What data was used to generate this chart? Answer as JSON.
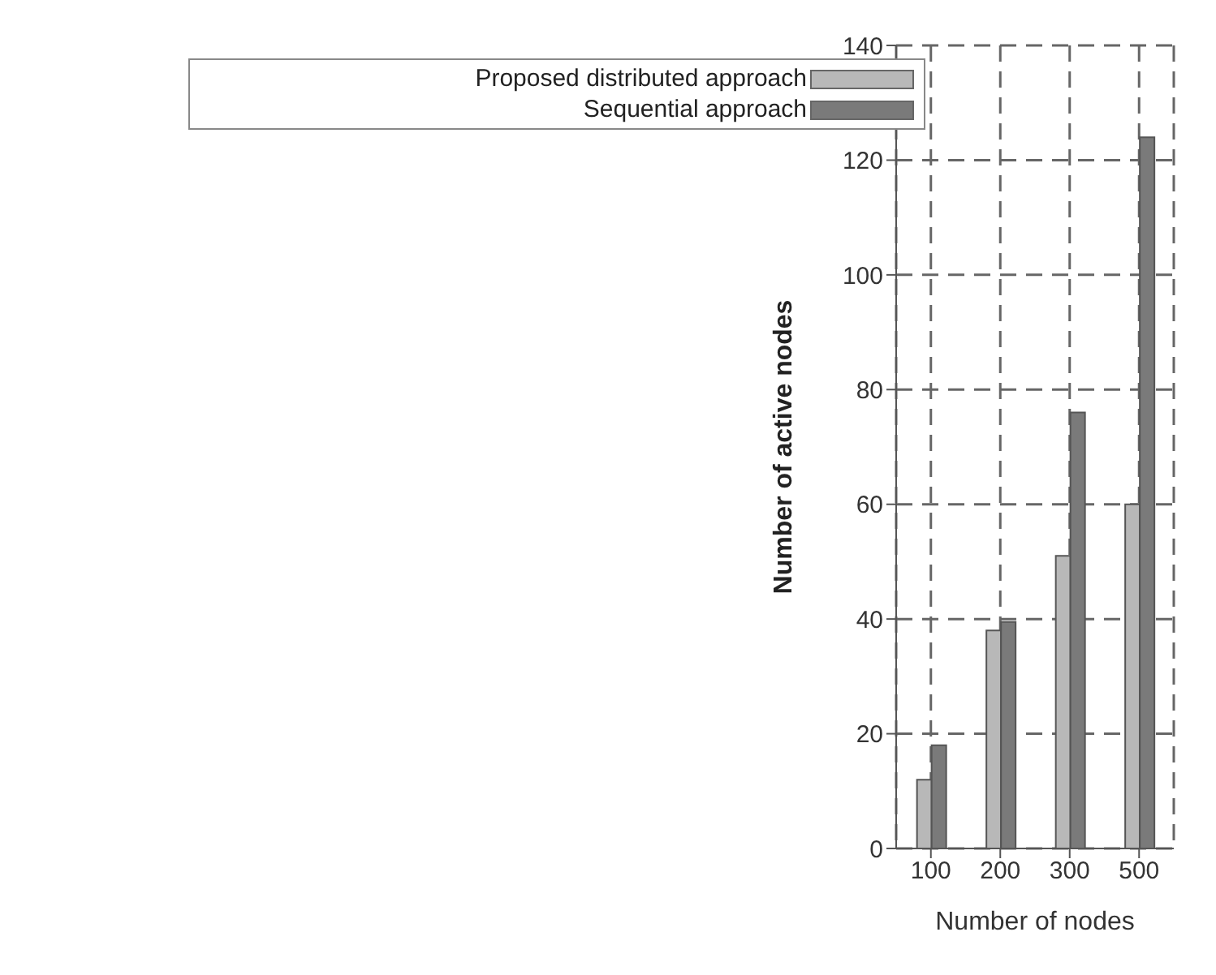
{
  "chart_data": {
    "type": "bar",
    "xlabel": "Number of nodes",
    "ylabel": "Number of active nodes",
    "categories": [
      "100",
      "200",
      "300",
      "500"
    ],
    "series": [
      {
        "name": "Proposed distributed approach",
        "color": "#b8b8b8",
        "values": [
          12,
          38,
          51,
          60
        ]
      },
      {
        "name": "Sequential approach",
        "color": "#7a7a7a",
        "values": [
          18,
          39.5,
          76,
          124
        ]
      }
    ],
    "ylim": [
      0,
      140
    ],
    "yticks": [
      0,
      20,
      40,
      60,
      80,
      100,
      120,
      140
    ],
    "grid": true,
    "line_style": "dashed",
    "legend": "top left"
  }
}
